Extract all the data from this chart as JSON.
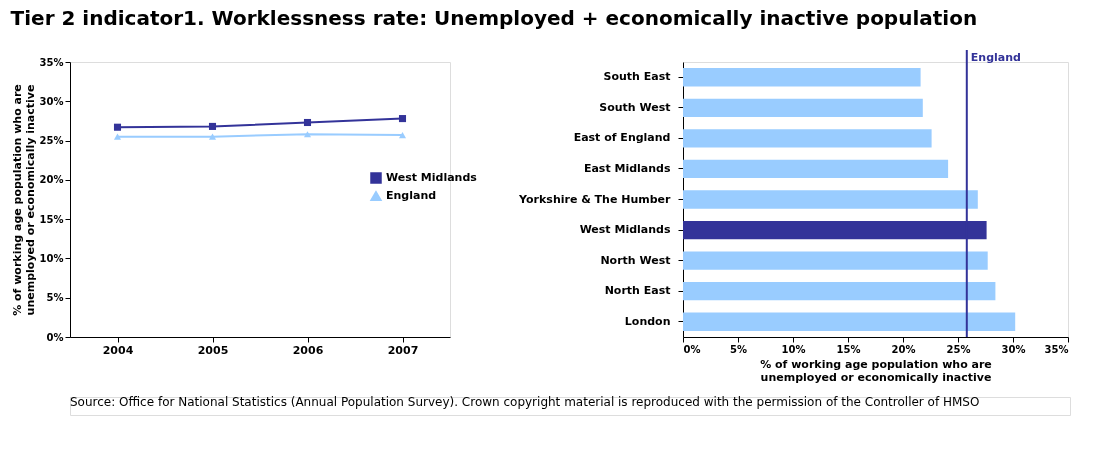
{
  "chart_data": [
    {
      "type": "line",
      "title": "Tier 2 indicator1. Worklessness rate: Unemployed + economically inactive population",
      "ylabel": "% of working age population who are\nunemployed or economically inactive",
      "categories": [
        "2004",
        "2005",
        "2006",
        "2007"
      ],
      "series": [
        {
          "name": "West Midlands",
          "color": "#333399",
          "marker": "square",
          "values": [
            26.7,
            26.8,
            27.3,
            27.8
          ]
        },
        {
          "name": "England",
          "color": "#99ccff",
          "marker": "triangle",
          "values": [
            25.5,
            25.5,
            25.8,
            25.7
          ]
        }
      ],
      "ylim": [
        0,
        35
      ],
      "yticks": [
        {
          "value": 0,
          "label": "0%"
        },
        {
          "value": 5,
          "label": "5%"
        },
        {
          "value": 10,
          "label": "10%"
        },
        {
          "value": 15,
          "label": "15%"
        },
        {
          "value": 20,
          "label": "20%"
        },
        {
          "value": 25,
          "label": "25%"
        },
        {
          "value": 30,
          "label": "30%"
        },
        {
          "value": 35,
          "label": "35%"
        }
      ],
      "grid": false,
      "legend": "right"
    },
    {
      "type": "bar",
      "orientation": "horizontal",
      "xlabel": "% of working age population who are\nunemployed or economically inactive",
      "categories": [
        "South East",
        "South West",
        "East of England",
        "East Midlands",
        "Yorkshire & The Humber",
        "West Midlands",
        "North West",
        "North East",
        "London"
      ],
      "values": [
        21.6,
        21.8,
        22.6,
        24.1,
        26.8,
        27.6,
        27.7,
        28.4,
        30.2
      ],
      "colors": [
        "#99ccff",
        "#99ccff",
        "#99ccff",
        "#99ccff",
        "#99ccff",
        "#333399",
        "#99ccff",
        "#99ccff",
        "#99ccff"
      ],
      "xlim": [
        0,
        35
      ],
      "xticks": [
        {
          "value": 0,
          "label": "0%"
        },
        {
          "value": 5,
          "label": "5%"
        },
        {
          "value": 10,
          "label": "10%"
        },
        {
          "value": 15,
          "label": "15%"
        },
        {
          "value": 20,
          "label": "20%"
        },
        {
          "value": 25,
          "label": "25%"
        },
        {
          "value": 30,
          "label": "30%"
        },
        {
          "value": 35,
          "label": "35%"
        }
      ],
      "ref_lines": [
        {
          "axis": "x",
          "value": 25.8,
          "label": "England",
          "color": "#333399"
        }
      ],
      "grid": false,
      "annotations": [
        "Source: Office for National Statistics (Annual Population Survey). Crown copyright material is reproduced with the permission of the Controller of HMSO"
      ]
    }
  ]
}
